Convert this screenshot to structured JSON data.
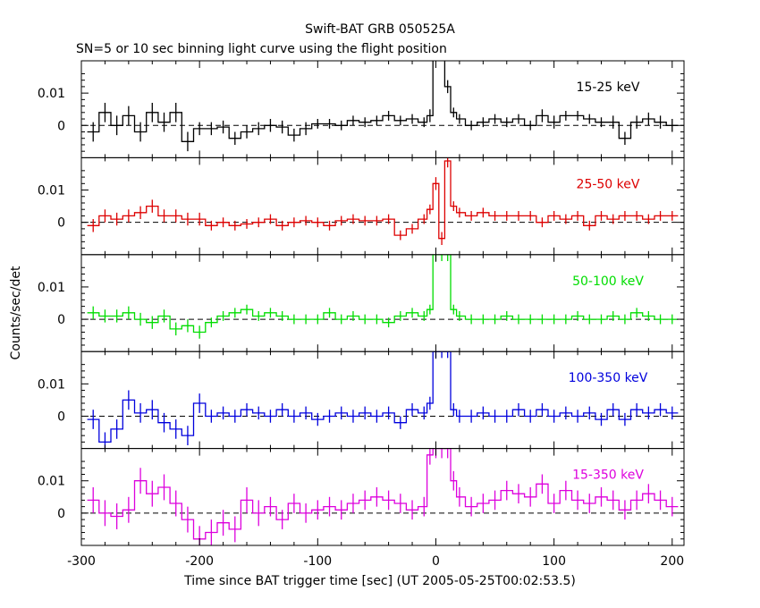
{
  "chart_data": {
    "type": "line",
    "title": "Swift-BAT GRB 050525A",
    "subtitle": "SN=5 or 10 sec binning light curve using the flight position",
    "xlabel": "Time since BAT trigger time [sec] (UT 2005-05-25T00:02:53.5)",
    "ylabel": "Counts/sec/det",
    "xlim": [
      -300,
      210
    ],
    "ylim": [
      -0.01,
      0.02
    ],
    "x_ticks": [
      -300,
      -200,
      -100,
      0,
      100,
      200
    ],
    "x_tick_labels": [
      "-300",
      "-200",
      "-100",
      "0",
      "100",
      "200"
    ],
    "y_ticks": [
      0,
      0.01
    ],
    "y_tick_labels": [
      "0",
      "0.01"
    ],
    "reference_line": 0,
    "panels": [
      {
        "name": "15-25 keV",
        "color": "#000000",
        "label_color": "#000000",
        "x": [
          -290,
          -280,
          -270,
          -260,
          -250,
          -240,
          -230,
          -220,
          -210,
          -200,
          -190,
          -180,
          -170,
          -160,
          -150,
          -140,
          -130,
          -120,
          -110,
          -100,
          -90,
          -80,
          -70,
          -60,
          -50,
          -40,
          -30,
          -20,
          -10,
          -5,
          0,
          5,
          10,
          15,
          20,
          30,
          40,
          50,
          60,
          70,
          80,
          90,
          100,
          110,
          120,
          130,
          140,
          150,
          160,
          170,
          180,
          190,
          200
        ],
        "y": [
          -0.002,
          0.004,
          0.0,
          0.003,
          -0.002,
          0.004,
          0.001,
          0.004,
          -0.005,
          -0.001,
          -0.001,
          -0.0005,
          -0.004,
          -0.002,
          -0.001,
          0.0,
          -0.0005,
          -0.003,
          -0.001,
          0.0005,
          0.0005,
          0.0,
          0.0015,
          0.001,
          0.0015,
          0.003,
          0.0015,
          0.002,
          0.001,
          0.003,
          0.03,
          0.03,
          0.012,
          0.004,
          0.002,
          0.0,
          0.001,
          0.002,
          0.001,
          0.002,
          0.0,
          0.003,
          0.001,
          0.003,
          0.003,
          0.002,
          0.001,
          0.001,
          -0.004,
          0.001,
          0.002,
          0.001,
          0.0
        ],
        "err": [
          0.003,
          0.003,
          0.003,
          0.003,
          0.003,
          0.003,
          0.003,
          0.003,
          0.003,
          0.002,
          0.002,
          0.002,
          0.002,
          0.002,
          0.002,
          0.002,
          0.002,
          0.002,
          0.002,
          0.0015,
          0.0015,
          0.0015,
          0.0015,
          0.0015,
          0.0015,
          0.0015,
          0.0015,
          0.0015,
          0.0015,
          0.002,
          0.002,
          0.002,
          0.002,
          0.0015,
          0.0015,
          0.0015,
          0.0015,
          0.0015,
          0.0015,
          0.0015,
          0.0015,
          0.002,
          0.002,
          0.0015,
          0.0015,
          0.0015,
          0.0015,
          0.002,
          0.002,
          0.002,
          0.002,
          0.002,
          0.002
        ]
      },
      {
        "name": "25-50 keV",
        "color": "#dd0000",
        "label_color": "#dd0000",
        "x": [
          -290,
          -280,
          -270,
          -260,
          -250,
          -240,
          -230,
          -220,
          -210,
          -200,
          -190,
          -180,
          -170,
          -160,
          -150,
          -140,
          -130,
          -120,
          -110,
          -100,
          -90,
          -80,
          -70,
          -60,
          -50,
          -40,
          -30,
          -20,
          -10,
          -5,
          0,
          5,
          10,
          15,
          20,
          30,
          40,
          50,
          60,
          70,
          80,
          90,
          100,
          110,
          120,
          130,
          140,
          150,
          160,
          170,
          180,
          190,
          200
        ],
        "y": [
          -0.001,
          0.002,
          0.001,
          0.002,
          0.003,
          0.005,
          0.002,
          0.002,
          0.001,
          0.001,
          -0.001,
          0.0,
          -0.001,
          -0.0005,
          0.0,
          0.001,
          -0.001,
          0.0,
          0.0005,
          0.0,
          -0.001,
          0.0005,
          0.001,
          0.0005,
          0.0005,
          0.001,
          -0.004,
          -0.002,
          0.001,
          0.004,
          0.012,
          -0.005,
          0.019,
          0.005,
          0.003,
          0.002,
          0.003,
          0.002,
          0.002,
          0.002,
          0.002,
          0.0,
          0.002,
          0.001,
          0.002,
          -0.001,
          0.002,
          0.001,
          0.002,
          0.002,
          0.001,
          0.002,
          0.002
        ],
        "err": [
          0.002,
          0.002,
          0.002,
          0.002,
          0.002,
          0.002,
          0.002,
          0.002,
          0.002,
          0.002,
          0.0015,
          0.0015,
          0.0015,
          0.0015,
          0.0015,
          0.0015,
          0.0015,
          0.0015,
          0.0015,
          0.0015,
          0.0015,
          0.0015,
          0.0015,
          0.0015,
          0.0015,
          0.0015,
          0.0015,
          0.0015,
          0.0015,
          0.0015,
          0.002,
          0.002,
          0.002,
          0.0015,
          0.0015,
          0.0015,
          0.0015,
          0.0015,
          0.0015,
          0.0015,
          0.0015,
          0.0015,
          0.0015,
          0.0015,
          0.0015,
          0.0015,
          0.0015,
          0.0015,
          0.0015,
          0.0015,
          0.0015,
          0.0015,
          0.0015
        ]
      },
      {
        "name": "50-100 keV",
        "color": "#00dd00",
        "label_color": "#00dd00",
        "x": [
          -290,
          -280,
          -270,
          -260,
          -250,
          -240,
          -230,
          -220,
          -210,
          -200,
          -190,
          -180,
          -170,
          -160,
          -150,
          -140,
          -130,
          -120,
          -110,
          -100,
          -90,
          -80,
          -70,
          -60,
          -50,
          -40,
          -30,
          -20,
          -10,
          -5,
          0,
          5,
          10,
          15,
          20,
          30,
          40,
          50,
          60,
          70,
          80,
          90,
          100,
          110,
          120,
          130,
          140,
          150,
          160,
          170,
          180,
          190,
          200
        ],
        "y": [
          0.002,
          0.001,
          0.001,
          0.002,
          0.0,
          -0.001,
          0.001,
          -0.003,
          -0.002,
          -0.004,
          -0.001,
          0.001,
          0.002,
          0.003,
          0.001,
          0.002,
          0.001,
          0.0,
          0.0,
          0.0,
          0.002,
          0.0,
          0.001,
          0.0,
          0.0,
          -0.001,
          0.001,
          0.002,
          0.001,
          0.003,
          0.02,
          0.02,
          0.02,
          0.003,
          0.001,
          0.0,
          0.0,
          0.0,
          0.001,
          0.0,
          0.0,
          0.0,
          0.0,
          0.0,
          0.001,
          0.0,
          0.0,
          0.001,
          0.0,
          0.002,
          0.001,
          0.0,
          0.0
        ],
        "err": [
          0.002,
          0.002,
          0.002,
          0.002,
          0.002,
          0.002,
          0.002,
          0.002,
          0.002,
          0.002,
          0.0015,
          0.0015,
          0.0015,
          0.0015,
          0.0015,
          0.0015,
          0.0015,
          0.0015,
          0.0015,
          0.0015,
          0.0015,
          0.0015,
          0.0015,
          0.0015,
          0.0015,
          0.0015,
          0.0015,
          0.0015,
          0.0015,
          0.0015,
          0.002,
          0.002,
          0.002,
          0.0015,
          0.0015,
          0.0015,
          0.0015,
          0.0015,
          0.0015,
          0.0015,
          0.0015,
          0.0015,
          0.0015,
          0.0015,
          0.0015,
          0.0015,
          0.0015,
          0.0015,
          0.0015,
          0.0015,
          0.0015,
          0.0015,
          0.0015
        ]
      },
      {
        "name": "100-350 keV",
        "color": "#0000dd",
        "label_color": "#0000dd",
        "x": [
          -290,
          -280,
          -270,
          -260,
          -250,
          -240,
          -230,
          -220,
          -210,
          -200,
          -190,
          -180,
          -170,
          -160,
          -150,
          -140,
          -130,
          -120,
          -110,
          -100,
          -90,
          -80,
          -70,
          -60,
          -50,
          -40,
          -30,
          -20,
          -10,
          -5,
          0,
          5,
          10,
          15,
          20,
          30,
          40,
          50,
          60,
          70,
          80,
          90,
          100,
          110,
          120,
          130,
          140,
          150,
          160,
          170,
          180,
          190,
          200
        ],
        "y": [
          -0.001,
          -0.008,
          -0.004,
          0.005,
          0.001,
          0.002,
          -0.002,
          -0.004,
          -0.006,
          0.004,
          0.0,
          0.001,
          0.0,
          0.002,
          0.001,
          0.0,
          0.002,
          0.0,
          0.001,
          -0.001,
          0.0,
          0.001,
          0.0,
          0.001,
          0.0,
          0.001,
          -0.002,
          0.002,
          0.001,
          0.004,
          0.02,
          0.02,
          0.02,
          0.002,
          0.0,
          0.0,
          0.001,
          0.0,
          0.0,
          0.002,
          0.0,
          0.002,
          0.0,
          0.001,
          0.0,
          0.001,
          -0.001,
          0.002,
          -0.001,
          0.002,
          0.001,
          0.002,
          0.001
        ],
        "err": [
          0.003,
          0.003,
          0.003,
          0.003,
          0.003,
          0.003,
          0.003,
          0.003,
          0.003,
          0.003,
          0.002,
          0.002,
          0.002,
          0.002,
          0.002,
          0.002,
          0.002,
          0.002,
          0.002,
          0.002,
          0.002,
          0.002,
          0.002,
          0.002,
          0.002,
          0.002,
          0.002,
          0.002,
          0.002,
          0.002,
          0.002,
          0.002,
          0.002,
          0.002,
          0.002,
          0.002,
          0.002,
          0.002,
          0.002,
          0.002,
          0.002,
          0.002,
          0.002,
          0.002,
          0.002,
          0.002,
          0.002,
          0.002,
          0.002,
          0.002,
          0.002,
          0.002,
          0.002
        ]
      },
      {
        "name": "15-350 keV",
        "color": "#dd00dd",
        "label_color": "#dd00dd",
        "x": [
          -290,
          -280,
          -270,
          -260,
          -250,
          -240,
          -230,
          -220,
          -210,
          -200,
          -190,
          -180,
          -170,
          -160,
          -150,
          -140,
          -130,
          -120,
          -110,
          -100,
          -90,
          -80,
          -70,
          -60,
          -50,
          -40,
          -30,
          -20,
          -10,
          -5,
          0,
          5,
          10,
          15,
          20,
          30,
          40,
          50,
          60,
          70,
          80,
          90,
          100,
          110,
          120,
          130,
          140,
          150,
          160,
          170,
          180,
          190,
          200
        ],
        "y": [
          0.004,
          0.0,
          -0.001,
          0.001,
          0.01,
          0.006,
          0.008,
          0.003,
          -0.002,
          -0.008,
          -0.006,
          -0.003,
          -0.005,
          0.004,
          0.0,
          0.002,
          -0.002,
          0.003,
          0.0,
          0.001,
          0.002,
          0.001,
          0.003,
          0.004,
          0.005,
          0.004,
          0.003,
          0.001,
          0.002,
          0.018,
          0.02,
          0.02,
          0.02,
          0.01,
          0.005,
          0.002,
          0.003,
          0.004,
          0.007,
          0.006,
          0.005,
          0.009,
          0.003,
          0.007,
          0.004,
          0.003,
          0.005,
          0.004,
          0.001,
          0.004,
          0.006,
          0.004,
          0.002
        ],
        "err": [
          0.004,
          0.004,
          0.004,
          0.004,
          0.004,
          0.004,
          0.004,
          0.004,
          0.004,
          0.004,
          0.004,
          0.004,
          0.004,
          0.004,
          0.004,
          0.003,
          0.003,
          0.003,
          0.003,
          0.003,
          0.003,
          0.003,
          0.003,
          0.003,
          0.003,
          0.003,
          0.003,
          0.003,
          0.003,
          0.003,
          0.003,
          0.003,
          0.003,
          0.003,
          0.003,
          0.003,
          0.003,
          0.003,
          0.003,
          0.003,
          0.003,
          0.003,
          0.003,
          0.003,
          0.003,
          0.003,
          0.003,
          0.003,
          0.003,
          0.003,
          0.003,
          0.003,
          0.003
        ]
      }
    ]
  }
}
